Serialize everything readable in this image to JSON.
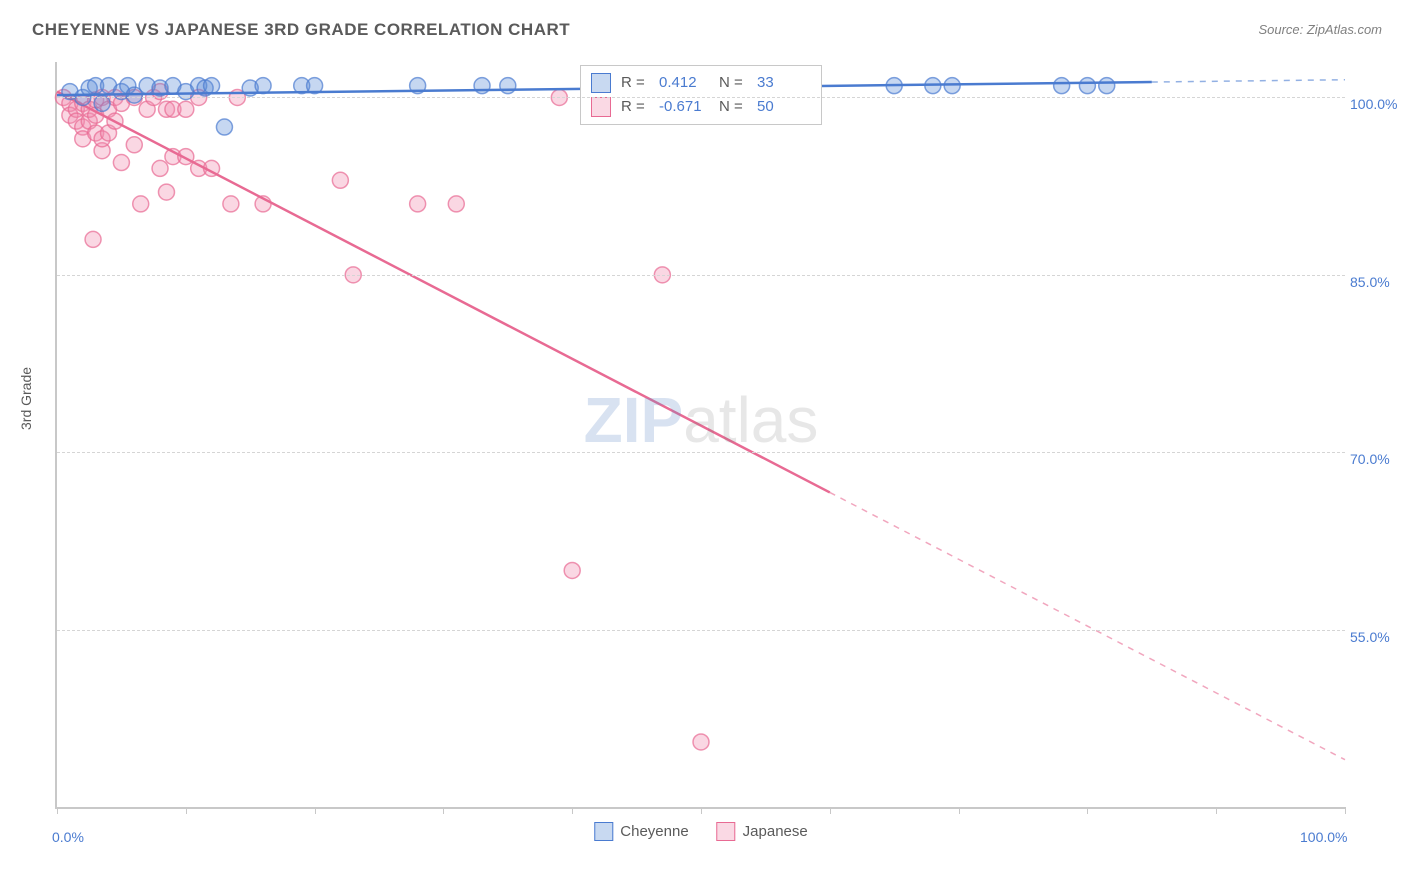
{
  "title": "CHEYENNE VS JAPANESE 3RD GRADE CORRELATION CHART",
  "source": "Source: ZipAtlas.com",
  "ylabel": "3rd Grade",
  "watermark": {
    "part1": "ZIP",
    "part2": "atlas"
  },
  "chart": {
    "type": "scatter-with-regression",
    "background_color": "#ffffff",
    "grid_color": "#d5d5d5",
    "axis_color": "#c8c8c8",
    "label_color": "#5a5a5a",
    "tick_label_color": "#4a7bd0",
    "xlim": [
      0,
      100
    ],
    "ylim": [
      40,
      103
    ],
    "x_ticks": [
      0,
      10,
      20,
      30,
      40,
      50,
      60,
      70,
      80,
      90,
      100
    ],
    "x_tick_labels": {
      "0": "0.0%",
      "100": "100.0%"
    },
    "y_gridlines": [
      55,
      70,
      85,
      100
    ],
    "y_tick_labels": {
      "55": "55.0%",
      "70": "70.0%",
      "85": "85.0%",
      "100": "100.0%"
    },
    "marker_radius": 8,
    "marker_fill_opacity": 0.35,
    "marker_stroke_width": 1.5,
    "trend_line_width": 2.5,
    "series": {
      "cheyenne": {
        "label": "Cheyenne",
        "color": "#5b8dd6",
        "stroke": "#4a7bd0",
        "R": "0.412",
        "N": "33",
        "trend": {
          "x1": 0,
          "y1": 100.2,
          "x2": 100,
          "y2": 101.5,
          "dash_from_x": 85
        },
        "points": [
          [
            1,
            100.5
          ],
          [
            2,
            100
          ],
          [
            2.5,
            100.8
          ],
          [
            3,
            101
          ],
          [
            3.5,
            99.5
          ],
          [
            4,
            101
          ],
          [
            5,
            100.5
          ],
          [
            5.5,
            101
          ],
          [
            6,
            100.2
          ],
          [
            7,
            101
          ],
          [
            8,
            100.8
          ],
          [
            9,
            101
          ],
          [
            10,
            100.5
          ],
          [
            11,
            101
          ],
          [
            11.5,
            100.8
          ],
          [
            12,
            101
          ],
          [
            13,
            97.5
          ],
          [
            15,
            100.8
          ],
          [
            16,
            101
          ],
          [
            19,
            101
          ],
          [
            20,
            101
          ],
          [
            28,
            101
          ],
          [
            33,
            101
          ],
          [
            35,
            101
          ],
          [
            45,
            101
          ],
          [
            51,
            101
          ],
          [
            57,
            101
          ],
          [
            65,
            101
          ],
          [
            68,
            101
          ],
          [
            69.5,
            101
          ],
          [
            78,
            101
          ],
          [
            80,
            101
          ],
          [
            81.5,
            101
          ]
        ]
      },
      "japanese": {
        "label": "Japanese",
        "color": "#f08cae",
        "stroke": "#e86a93",
        "R": "-0.671",
        "N": "50",
        "trend": {
          "x1": 0,
          "y1": 100.5,
          "x2": 100,
          "y2": 44,
          "dash_from_x": 60
        },
        "points": [
          [
            0.5,
            100
          ],
          [
            1,
            99.5
          ],
          [
            1,
            98.5
          ],
          [
            1.5,
            99
          ],
          [
            1.5,
            98
          ],
          [
            2,
            99.5
          ],
          [
            2,
            97.5
          ],
          [
            2,
            96.5
          ],
          [
            2.5,
            98
          ],
          [
            2.5,
            99
          ],
          [
            3,
            98.5
          ],
          [
            3,
            97
          ],
          [
            3,
            99.8
          ],
          [
            3.5,
            100
          ],
          [
            3.5,
            95.5
          ],
          [
            3.5,
            96.5
          ],
          [
            4,
            99
          ],
          [
            4,
            97
          ],
          [
            4.5,
            98
          ],
          [
            4.5,
            100
          ],
          [
            5,
            99.5
          ],
          [
            5,
            94.5
          ],
          [
            6,
            100
          ],
          [
            6,
            96
          ],
          [
            6.5,
            91
          ],
          [
            7,
            99
          ],
          [
            7.5,
            100
          ],
          [
            8,
            100.5
          ],
          [
            8,
            94
          ],
          [
            8.5,
            99
          ],
          [
            9,
            99
          ],
          [
            9,
            95
          ],
          [
            2.8,
            88
          ],
          [
            8.5,
            92
          ],
          [
            10,
            99
          ],
          [
            10,
            95
          ],
          [
            11,
            94
          ],
          [
            12,
            94
          ],
          [
            14,
            100
          ],
          [
            13.5,
            91
          ],
          [
            11,
            100
          ],
          [
            16,
            91
          ],
          [
            22,
            93
          ],
          [
            23,
            85
          ],
          [
            28,
            91
          ],
          [
            31,
            91
          ],
          [
            39,
            100
          ],
          [
            40,
            60
          ],
          [
            47,
            85
          ],
          [
            50,
            45.5
          ]
        ]
      }
    },
    "legend_top": {
      "rows": [
        {
          "series": "cheyenne",
          "r_label": "R =",
          "n_label": "N ="
        },
        {
          "series": "japanese",
          "r_label": "R =",
          "n_label": "N ="
        }
      ]
    },
    "legend_bottom": [
      "cheyenne",
      "japanese"
    ]
  }
}
